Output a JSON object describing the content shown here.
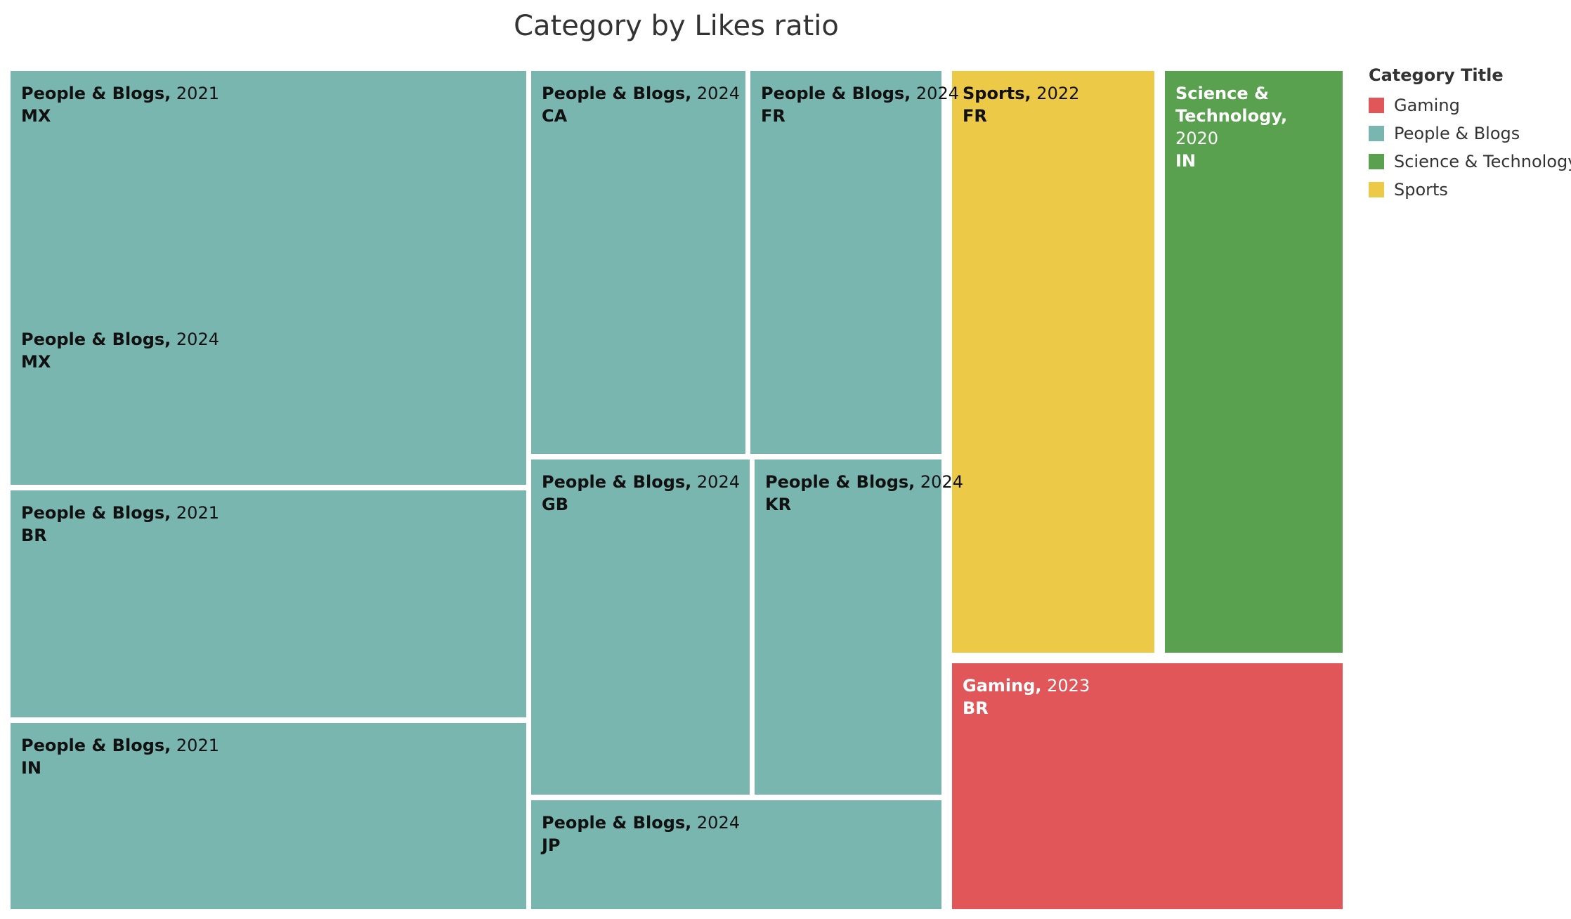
{
  "chart_data": {
    "type": "treemap",
    "title": "Category by Likes ratio",
    "legend": {
      "title": "Category Title",
      "position": "right",
      "items": [
        {
          "name": "Gaming",
          "color": "#e15759"
        },
        {
          "name": "People & Blogs",
          "color": "#79b6b0"
        },
        {
          "name": "Science & Technology",
          "color": "#59a14f"
        },
        {
          "name": "Sports",
          "color": "#edc948"
        }
      ]
    },
    "tiles": [
      {
        "category": "People & Blogs",
        "year": "2021",
        "country": "MX"
      },
      {
        "category": "People & Blogs",
        "year": "2024",
        "country": "MX"
      },
      {
        "category": "People & Blogs",
        "year": "2021",
        "country": "BR"
      },
      {
        "category": "People & Blogs",
        "year": "2021",
        "country": "IN"
      },
      {
        "category": "People & Blogs",
        "year": "2024",
        "country": "CA"
      },
      {
        "category": "People & Blogs",
        "year": "2024",
        "country": "FR"
      },
      {
        "category": "People & Blogs",
        "year": "2024",
        "country": "GB"
      },
      {
        "category": "People & Blogs",
        "year": "2024",
        "country": "KR"
      },
      {
        "category": "People & Blogs",
        "year": "2024",
        "country": "JP"
      },
      {
        "category": "Sports",
        "year": "2022",
        "country": "FR"
      },
      {
        "category": "Science & Technology",
        "year": "2020",
        "country": "IN"
      },
      {
        "category": "Gaming",
        "year": "2023",
        "country": "BR"
      }
    ]
  }
}
